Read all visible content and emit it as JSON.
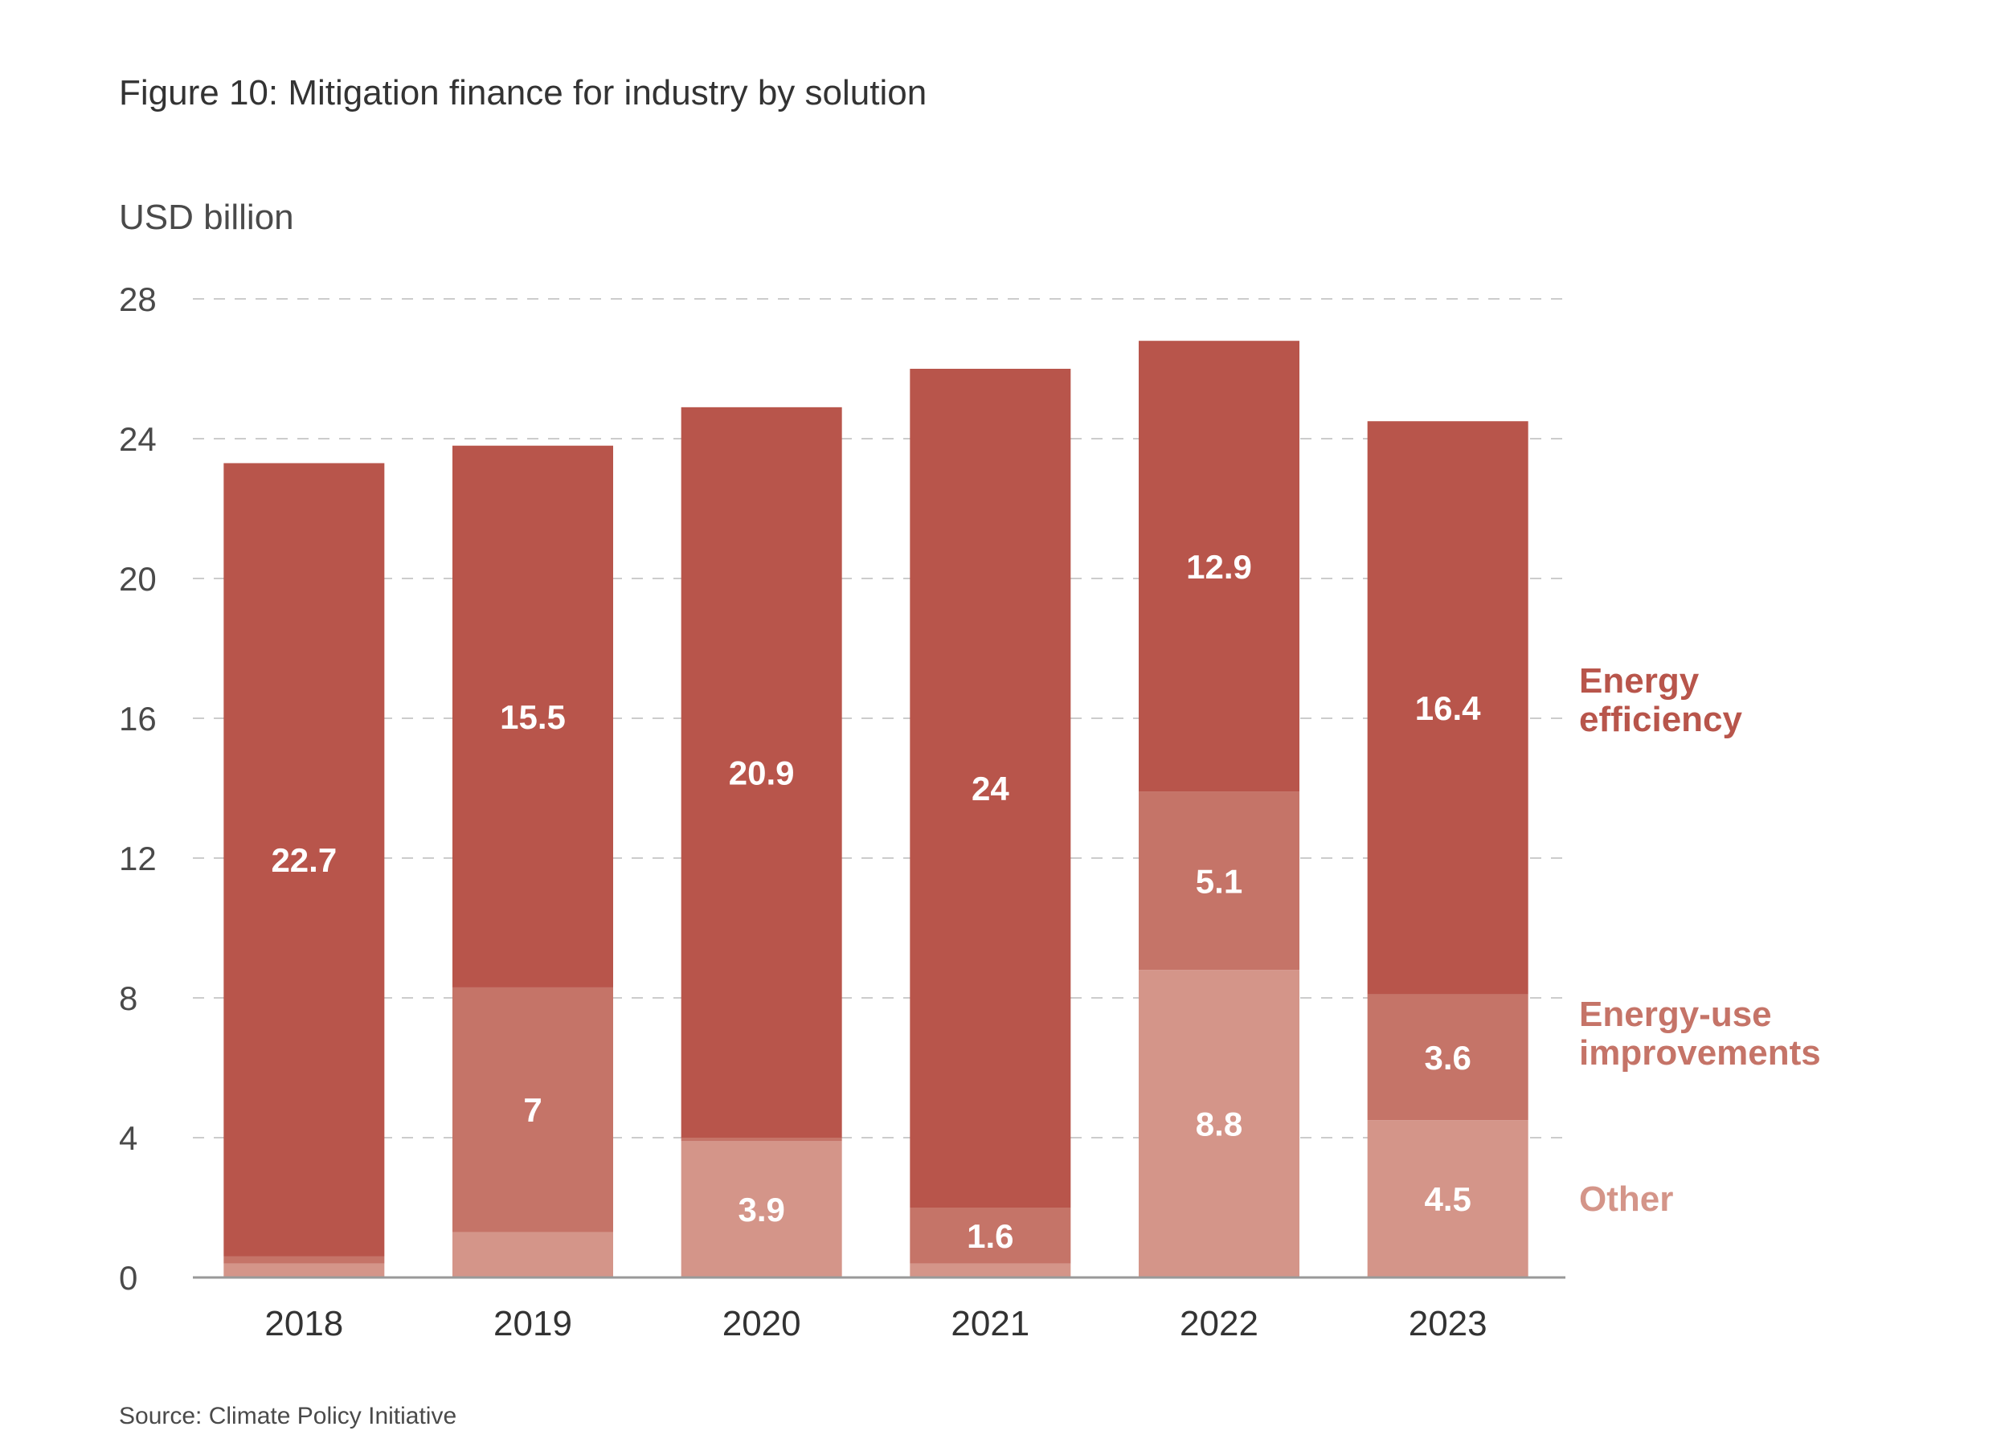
{
  "title": "Figure 10: Mitigation finance for industry by solution",
  "source": "Source: Climate Policy Initiative",
  "chart_data": {
    "type": "bar",
    "stacked": true,
    "title": "Figure 10: Mitigation finance for industry by solution",
    "unit_label": "USD billion",
    "categories": [
      "2018",
      "2019",
      "2020",
      "2021",
      "2022",
      "2023"
    ],
    "ylim": [
      0,
      28
    ],
    "yticks": [
      0,
      4,
      8,
      12,
      16,
      20,
      24,
      28
    ],
    "grid": true,
    "legend_position": "right",
    "series": [
      {
        "name": "Other",
        "color": "#d49589",
        "values": [
          0.4,
          1.3,
          3.9,
          0.4,
          8.8,
          4.5
        ],
        "labels": [
          "",
          "",
          "3.9",
          "",
          "8.8",
          "4.5"
        ]
      },
      {
        "name": "Energy-use improvements",
        "color": "#c57468",
        "values": [
          0.2,
          7,
          0.1,
          1.6,
          5.1,
          3.6
        ],
        "labels": [
          "",
          "7",
          "",
          "1.6",
          "5.1",
          "3.6"
        ]
      },
      {
        "name": "Energy efficiency",
        "color": "#b8554b",
        "values": [
          22.7,
          15.5,
          20.9,
          24,
          12.9,
          16.4
        ],
        "labels": [
          "22.7",
          "15.5",
          "20.9",
          "24",
          "12.9",
          "16.4"
        ]
      }
    ],
    "legend": [
      {
        "lines": [
          "Energy",
          "efficiency"
        ],
        "color": "#b8554b"
      },
      {
        "lines": [
          "Energy-use",
          "improvements"
        ],
        "color": "#c57468"
      },
      {
        "lines": [
          "Other"
        ],
        "color": "#d49589"
      }
    ]
  }
}
